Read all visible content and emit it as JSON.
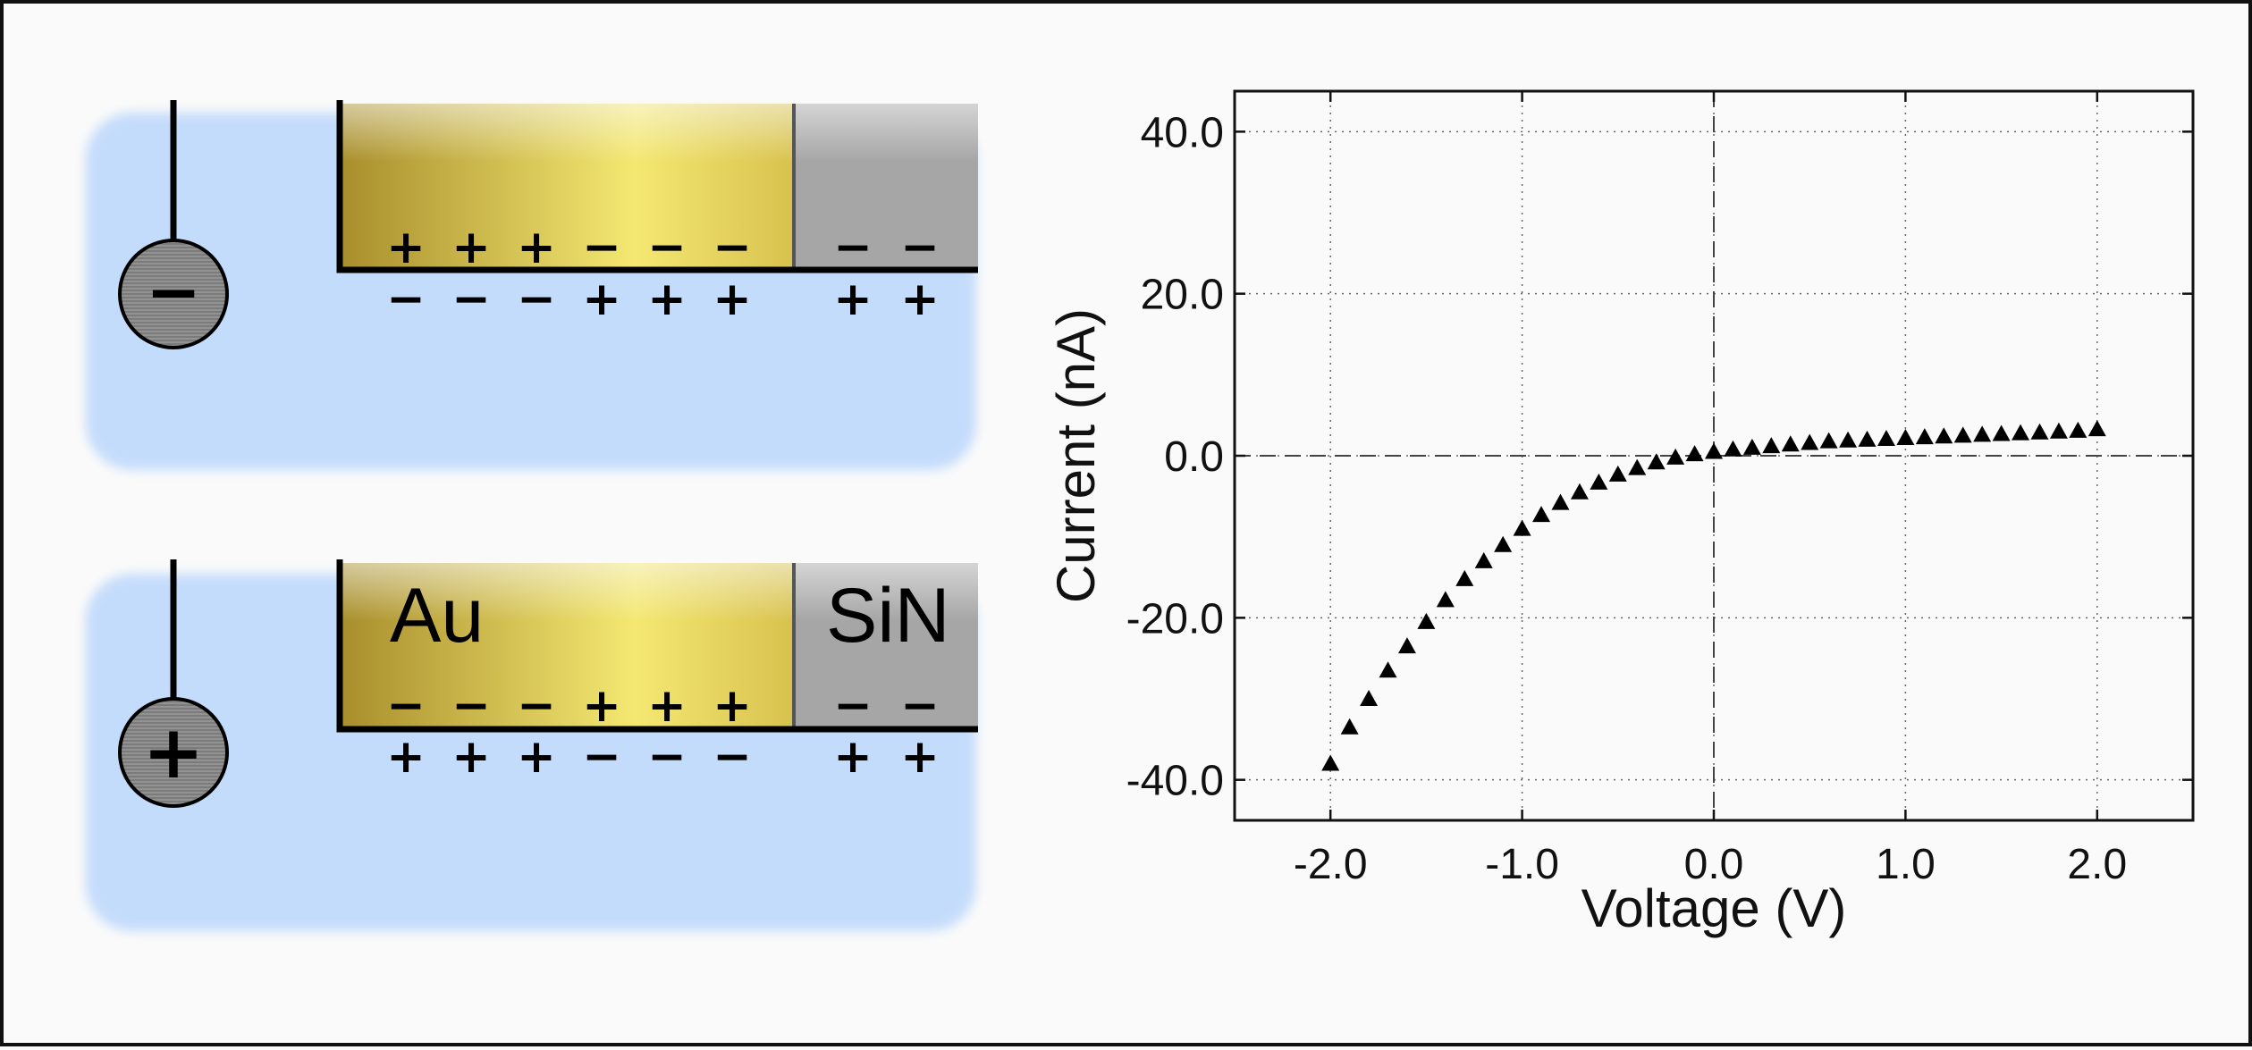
{
  "panels": [
    {
      "id": "top",
      "electrode_sign": "−",
      "materials": [
        {
          "name": "Au",
          "label": "",
          "top_charges": [
            "+",
            "+",
            "+",
            "−",
            "−",
            "−"
          ],
          "bottom_charges": [
            "−",
            "−",
            "−",
            "+",
            "+",
            "+"
          ]
        },
        {
          "name": "SiN",
          "label": "",
          "top_charges": [
            "−",
            "−"
          ],
          "bottom_charges": [
            "+",
            "+"
          ]
        }
      ]
    },
    {
      "id": "bottom",
      "electrode_sign": "+",
      "materials": [
        {
          "name": "Au",
          "label": "Au",
          "top_charges": [
            "−",
            "−",
            "−",
            "+",
            "+",
            "+"
          ],
          "bottom_charges": [
            "+",
            "+",
            "+",
            "−",
            "−",
            "−"
          ]
        },
        {
          "name": "SiN",
          "label": "SiN",
          "top_charges": [
            "−",
            "−"
          ],
          "bottom_charges": [
            "+",
            "+"
          ]
        }
      ]
    }
  ],
  "colors": {
    "electrolyte": "#c4dcfb",
    "gold_dark": "#a88e2c",
    "gold_light": "#f4e872",
    "sin": "#a6a6a6",
    "electrode": "#808080",
    "markers": "#000000"
  },
  "chart_data": {
    "type": "scatter",
    "marker": "triangle-up",
    "xlabel": "Voltage (V)",
    "ylabel": "Current (nA)",
    "xlim": [
      -2.5,
      2.5
    ],
    "ylim": [
      -45,
      45
    ],
    "xticks": [
      -2.0,
      -1.0,
      0.0,
      1.0,
      2.0
    ],
    "xtick_labels": [
      "-2.0",
      "-1.0",
      "0.0",
      "1.0",
      "2.0"
    ],
    "yticks": [
      -40.0,
      -20.0,
      0.0,
      20.0,
      40.0
    ],
    "ytick_labels": [
      "-40.0",
      "-20.0",
      "0.0",
      "20.0",
      "40.0"
    ],
    "grid": true,
    "zero_lines": true,
    "x": [
      -2.0,
      -1.9,
      -1.8,
      -1.7,
      -1.6,
      -1.5,
      -1.4,
      -1.3,
      -1.2,
      -1.1,
      -1.0,
      -0.9,
      -0.8,
      -0.7,
      -0.6,
      -0.5,
      -0.4,
      -0.3,
      -0.2,
      -0.1,
      0.0,
      0.1,
      0.2,
      0.3,
      0.4,
      0.5,
      0.6,
      0.7,
      0.8,
      0.9,
      1.0,
      1.1,
      1.2,
      1.3,
      1.4,
      1.5,
      1.6,
      1.7,
      1.8,
      1.9,
      2.0
    ],
    "y": [
      -38.0,
      -33.5,
      -30.0,
      -26.5,
      -23.5,
      -20.5,
      -17.8,
      -15.2,
      -13.0,
      -11.0,
      -9.0,
      -7.3,
      -5.8,
      -4.5,
      -3.3,
      -2.3,
      -1.5,
      -0.8,
      -0.2,
      0.2,
      0.5,
      0.8,
      1.0,
      1.2,
      1.4,
      1.6,
      1.8,
      1.9,
      2.0,
      2.1,
      2.2,
      2.3,
      2.4,
      2.5,
      2.6,
      2.7,
      2.8,
      2.9,
      3.0,
      3.1,
      3.3
    ]
  }
}
